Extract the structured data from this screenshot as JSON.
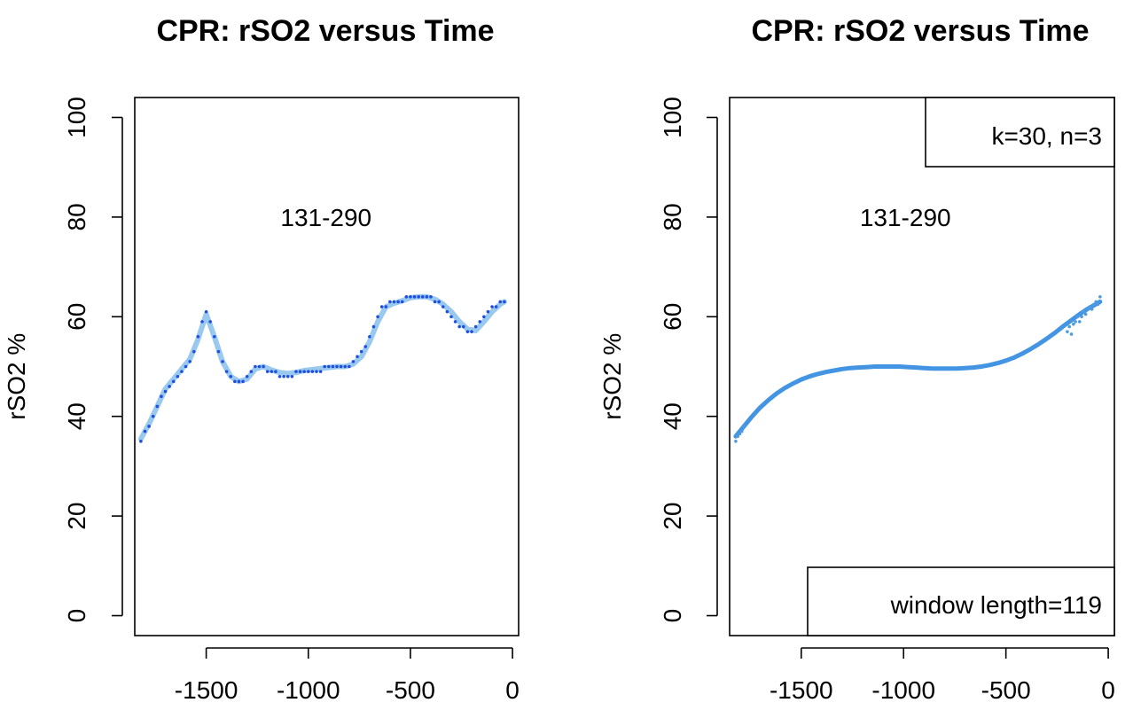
{
  "chart_data": [
    {
      "type": "scatter",
      "title": "CPR: rSO2 versus Time",
      "xlabel": "",
      "ylabel": "rSO2 %",
      "xlim": [
        -1850,
        30
      ],
      "ylim": [
        -4,
        104
      ],
      "x_ticks": [
        -1500,
        -1000,
        -500,
        0
      ],
      "x_tick_labels": [
        "-1500",
        "-1000",
        "-500",
        "0"
      ],
      "y_ticks": [
        0,
        20,
        40,
        60,
        80,
        100
      ],
      "y_tick_labels": [
        "0",
        "20",
        "40",
        "60",
        "80",
        "100"
      ],
      "annotations": [
        {
          "text": "131-290",
          "x": -1000,
          "y": 80
        }
      ],
      "legends": [],
      "colors": {
        "points": "#1f4fe0",
        "smooth": "#8fc3ee"
      },
      "series": [
        {
          "kind": "points",
          "x": [
            -1820,
            -1800,
            -1780,
            -1760,
            -1740,
            -1720,
            -1700,
            -1680,
            -1660,
            -1640,
            -1620,
            -1600,
            -1580,
            -1560,
            -1540,
            -1520,
            -1500,
            -1480,
            -1460,
            -1440,
            -1420,
            -1400,
            -1380,
            -1360,
            -1340,
            -1320,
            -1300,
            -1280,
            -1260,
            -1240,
            -1220,
            -1200,
            -1180,
            -1160,
            -1140,
            -1120,
            -1100,
            -1080,
            -1060,
            -1040,
            -1020,
            -1000,
            -980,
            -960,
            -940,
            -920,
            -900,
            -880,
            -860,
            -840,
            -820,
            -800,
            -780,
            -760,
            -740,
            -720,
            -700,
            -680,
            -660,
            -640,
            -620,
            -600,
            -580,
            -560,
            -540,
            -520,
            -500,
            -480,
            -460,
            -440,
            -420,
            -400,
            -380,
            -360,
            -340,
            -320,
            -300,
            -280,
            -260,
            -240,
            -220,
            -200,
            -180,
            -160,
            -140,
            -120,
            -100,
            -80,
            -60,
            -40
          ],
          "y": [
            35,
            37,
            38,
            40,
            42,
            44,
            45,
            46,
            47,
            48,
            49,
            50,
            51,
            53,
            56,
            59,
            61,
            59,
            56,
            53,
            51,
            49,
            48,
            47,
            47,
            47,
            48,
            49,
            50,
            50,
            50,
            49,
            49,
            49,
            48,
            48,
            48,
            48,
            49,
            49,
            49,
            49,
            49,
            49,
            49,
            50,
            50,
            50,
            50,
            50,
            50,
            50,
            51,
            52,
            53,
            54,
            56,
            58,
            60,
            62,
            62,
            63,
            63,
            63,
            63,
            64,
            64,
            64,
            64,
            64,
            64,
            64,
            63,
            63,
            62,
            61,
            60,
            59,
            58,
            58,
            57,
            57,
            58,
            59,
            60,
            61,
            62,
            62,
            63,
            63
          ]
        },
        {
          "kind": "smooth",
          "x": [
            -1820,
            -1780,
            -1740,
            -1700,
            -1660,
            -1620,
            -1580,
            -1540,
            -1500,
            -1460,
            -1420,
            -1380,
            -1340,
            -1300,
            -1260,
            -1220,
            -1180,
            -1140,
            -1100,
            -1060,
            -1020,
            -980,
            -940,
            -900,
            -860,
            -820,
            -780,
            -740,
            -700,
            -660,
            -620,
            -580,
            -540,
            -500,
            -460,
            -420,
            -380,
            -340,
            -300,
            -260,
            -220,
            -180,
            -140,
            -100,
            -60,
            -40
          ],
          "y": [
            35.5,
            38.5,
            42,
            45.5,
            47.5,
            49.5,
            51.5,
            55.5,
            60.5,
            56,
            51,
            48,
            47,
            47.5,
            49.5,
            50,
            49.3,
            48.8,
            48.6,
            48.8,
            49.2,
            49.4,
            49.6,
            49.8,
            50,
            50,
            50.5,
            52,
            55,
            59,
            62,
            62.7,
            63.2,
            63.8,
            64,
            64,
            63.5,
            62.5,
            61,
            59,
            57.5,
            57.2,
            59,
            61,
            62.5,
            63
          ]
        }
      ]
    },
    {
      "type": "scatter",
      "title": "CPR: rSO2 versus Time",
      "xlabel": "",
      "ylabel": "rSO2 %",
      "xlim": [
        -1850,
        30
      ],
      "ylim": [
        -4,
        104
      ],
      "x_ticks": [
        -1500,
        -1000,
        -500,
        0
      ],
      "x_tick_labels": [
        "-1500",
        "-1000",
        "-500",
        "0"
      ],
      "y_ticks": [
        0,
        20,
        40,
        60,
        80,
        100
      ],
      "y_tick_labels": [
        "0",
        "20",
        "40",
        "60",
        "80",
        "100"
      ],
      "annotations": [
        {
          "text": "131-290",
          "x": -1000,
          "y": 80
        }
      ],
      "legends": [
        {
          "text": "k=30, n=3",
          "position": "top-right"
        },
        {
          "text": "window length=119",
          "position": "bottom-right"
        }
      ],
      "colors": {
        "points": "#4f9be0",
        "smooth": "#2f8ae0"
      },
      "series": [
        {
          "kind": "smooth",
          "x": [
            -1820,
            -1780,
            -1740,
            -1700,
            -1660,
            -1620,
            -1580,
            -1540,
            -1500,
            -1460,
            -1420,
            -1380,
            -1340,
            -1300,
            -1260,
            -1220,
            -1180,
            -1140,
            -1100,
            -1060,
            -1020,
            -980,
            -940,
            -900,
            -860,
            -820,
            -780,
            -740,
            -700,
            -660,
            -620,
            -580,
            -540,
            -500,
            -460,
            -420,
            -380,
            -340,
            -300,
            -260,
            -220,
            -180,
            -140,
            -100,
            -60,
            -40
          ],
          "y": [
            36,
            38,
            40,
            41.8,
            43.3,
            44.6,
            45.7,
            46.6,
            47.4,
            48,
            48.5,
            48.9,
            49.2,
            49.5,
            49.7,
            49.8,
            49.9,
            50,
            50,
            50,
            50,
            49.9,
            49.8,
            49.7,
            49.6,
            49.6,
            49.6,
            49.6,
            49.7,
            49.8,
            50,
            50.3,
            50.7,
            51.2,
            51.8,
            52.6,
            53.5,
            54.5,
            55.6,
            56.8,
            58.1,
            59.3,
            60.5,
            61.6,
            62.5,
            63
          ]
        },
        {
          "kind": "points",
          "x": [
            -1820,
            -1810,
            -1800,
            -1790,
            -1780,
            -200,
            -190,
            -180,
            -170,
            -160,
            -150,
            -140,
            -130,
            -120,
            -110,
            -100,
            -90,
            -80,
            -70,
            -60,
            -50,
            -40
          ],
          "y": [
            35,
            36,
            36.5,
            37,
            38,
            57,
            58,
            56.5,
            58.5,
            59,
            60,
            59,
            60,
            61,
            60.5,
            61.5,
            62,
            61.5,
            62.5,
            63,
            62.5,
            64
          ]
        }
      ]
    }
  ]
}
